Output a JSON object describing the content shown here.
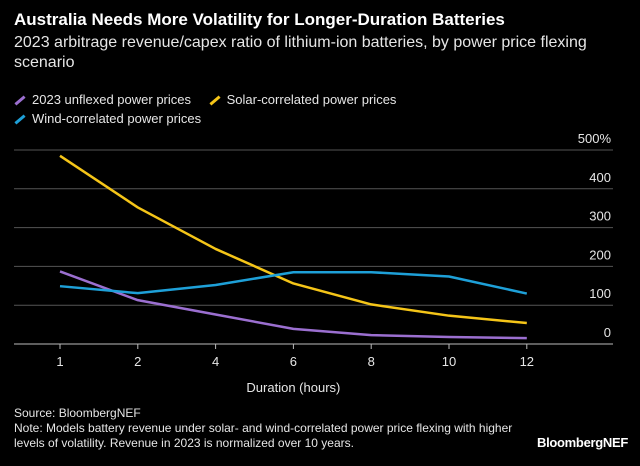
{
  "chart_data": {
    "type": "line",
    "title": "Australia Needs More Volatility for Longer-Duration Batteries",
    "subtitle": "2023 arbitrage revenue/capex ratio of lithium-ion batteries, by power price flexing scenario",
    "xlabel": "Duration (hours)",
    "ylabel": "",
    "categories": [
      "1",
      "2",
      "4",
      "6",
      "8",
      "10",
      "12"
    ],
    "ylim": [
      0,
      500
    ],
    "yticks": [
      "0",
      "100",
      "200",
      "300",
      "400",
      "500%"
    ],
    "grid": true,
    "legend_position": "top-left",
    "series": [
      {
        "name": "2023 unflexed power prices",
        "color": "#9b6fd0",
        "values": [
          187,
          113,
          76,
          39,
          23,
          18,
          15
        ]
      },
      {
        "name": "Solar-correlated power prices",
        "color": "#f5c518",
        "values": [
          485,
          352,
          245,
          156,
          102,
          73,
          54
        ]
      },
      {
        "name": "Wind-correlated power prices",
        "color": "#1ea0d8",
        "values": [
          149,
          131,
          152,
          185,
          185,
          174,
          130
        ]
      }
    ]
  },
  "footer": {
    "source": "Source: BloombergNEF",
    "note": "Note: Models battery revenue under solar- and wind-correlated power price flexing with higher levels of volatility. Revenue in 2023 is normalized over 10 years.",
    "logo": "BloombergNEF"
  }
}
